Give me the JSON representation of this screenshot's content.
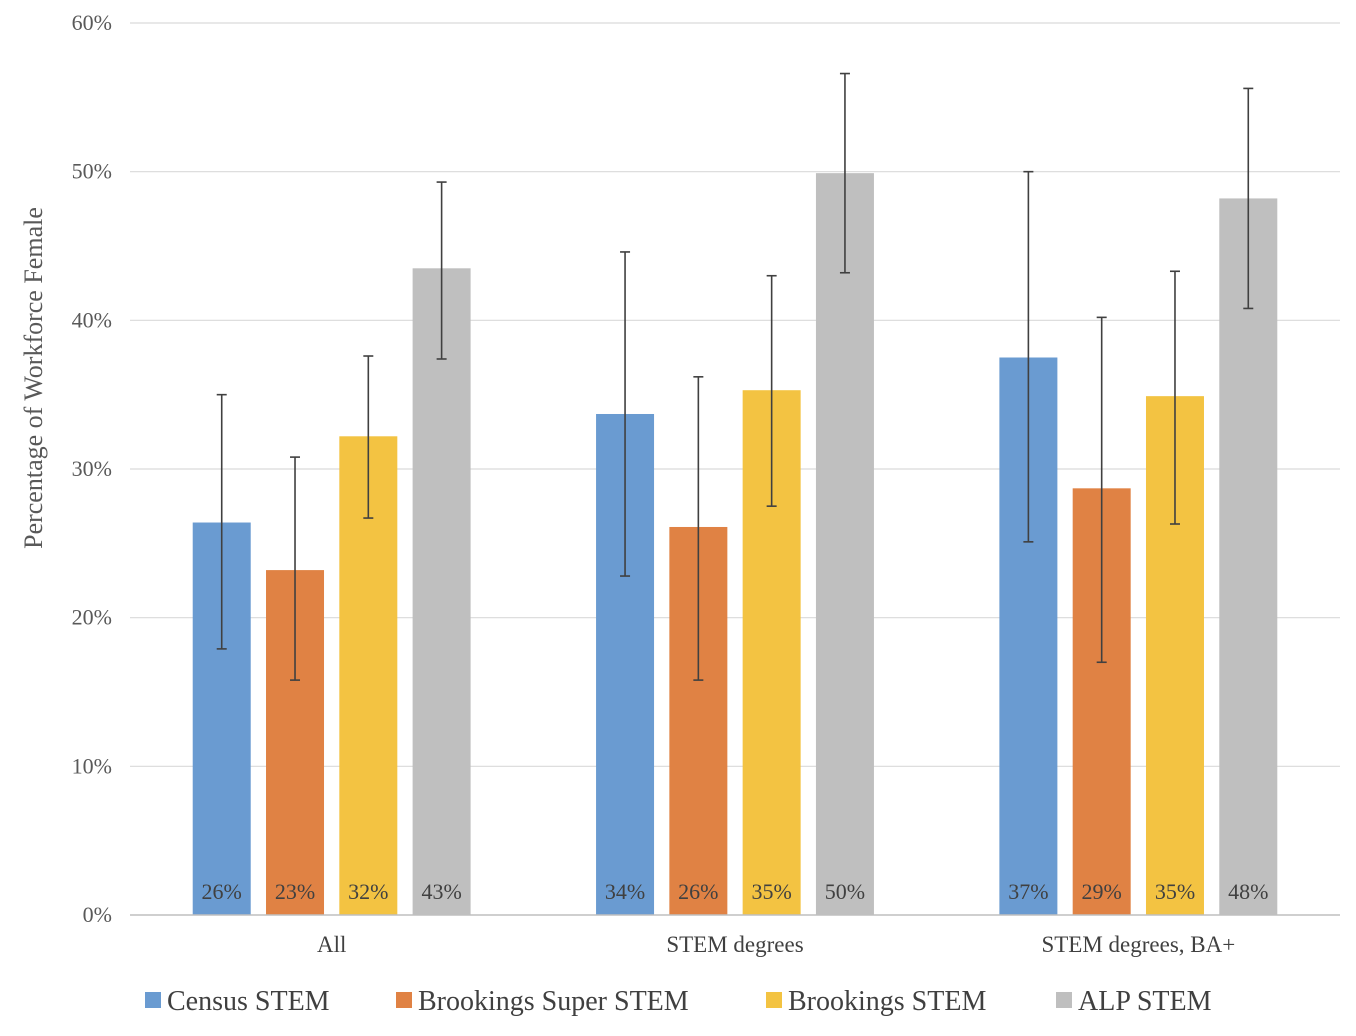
{
  "chart_data": {
    "type": "bar",
    "title": "",
    "xlabel": "",
    "ylabel": "Percentage of Workforce Female",
    "ylim": [
      0,
      60
    ],
    "yticks": [
      "0%",
      "10%",
      "20%",
      "30%",
      "40%",
      "50%",
      "60%"
    ],
    "grid": true,
    "legend_position": "bottom",
    "categories": [
      "All",
      "STEM degrees",
      "STEM degrees, BA+"
    ],
    "series": [
      {
        "name": "Census STEM",
        "color": "#6a9bd1",
        "values": [
          26.4,
          33.7,
          37.5
        ],
        "error_low": [
          17.9,
          22.8,
          25.1
        ],
        "error_high": [
          35.0,
          44.6,
          50.0
        ],
        "labels": [
          "26%",
          "34%",
          "37%"
        ]
      },
      {
        "name": "Brookings Super STEM",
        "color": "#e08244",
        "values": [
          23.2,
          26.1,
          28.7
        ],
        "error_low": [
          15.8,
          15.8,
          17.0
        ],
        "error_high": [
          30.8,
          36.2,
          40.2
        ],
        "labels": [
          "23%",
          "26%",
          "29%"
        ]
      },
      {
        "name": "Brookings STEM",
        "color": "#f3c342",
        "values": [
          32.2,
          35.3,
          34.9
        ],
        "error_low": [
          26.7,
          27.5,
          26.3
        ],
        "error_high": [
          37.6,
          43.0,
          43.3
        ],
        "labels": [
          "32%",
          "35%",
          "35%"
        ]
      },
      {
        "name": "ALP STEM",
        "color": "#bfbfbf",
        "values": [
          43.5,
          49.9,
          48.2
        ],
        "error_low": [
          37.4,
          43.2,
          40.8
        ],
        "error_high": [
          49.3,
          56.6,
          55.6
        ],
        "labels": [
          "43%",
          "50%",
          "48%"
        ]
      }
    ]
  }
}
